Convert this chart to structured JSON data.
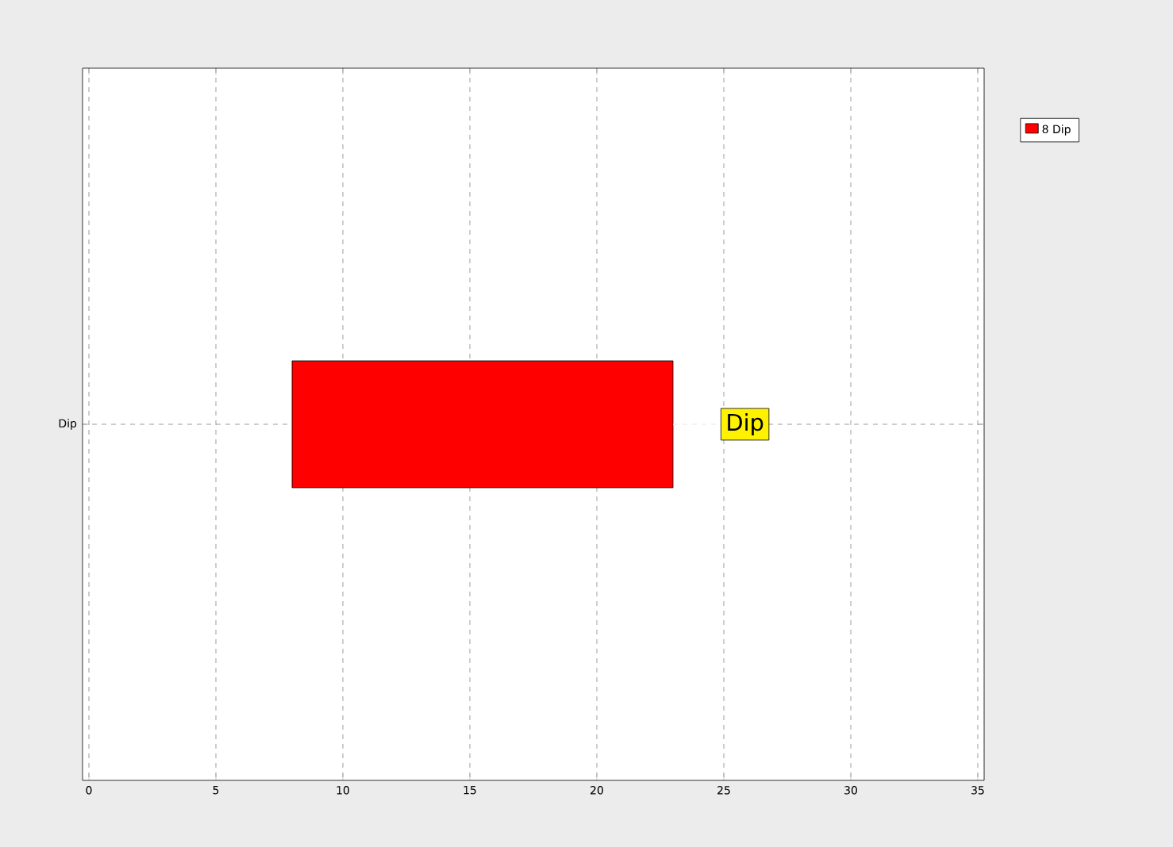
{
  "chart_data": {
    "type": "bar",
    "orientation": "horizontal",
    "categories": [
      "Dip"
    ],
    "series": [
      {
        "name": "8  Dip",
        "color": "#ff0000",
        "values": [
          15
        ],
        "base": [
          8
        ]
      }
    ],
    "xlim": [
      -0.25,
      35.25
    ],
    "xticks": [
      0,
      5,
      10,
      15,
      20,
      25,
      30,
      35
    ],
    "grid": true,
    "legend": "top right",
    "annotations": [
      "Dip"
    ]
  }
}
